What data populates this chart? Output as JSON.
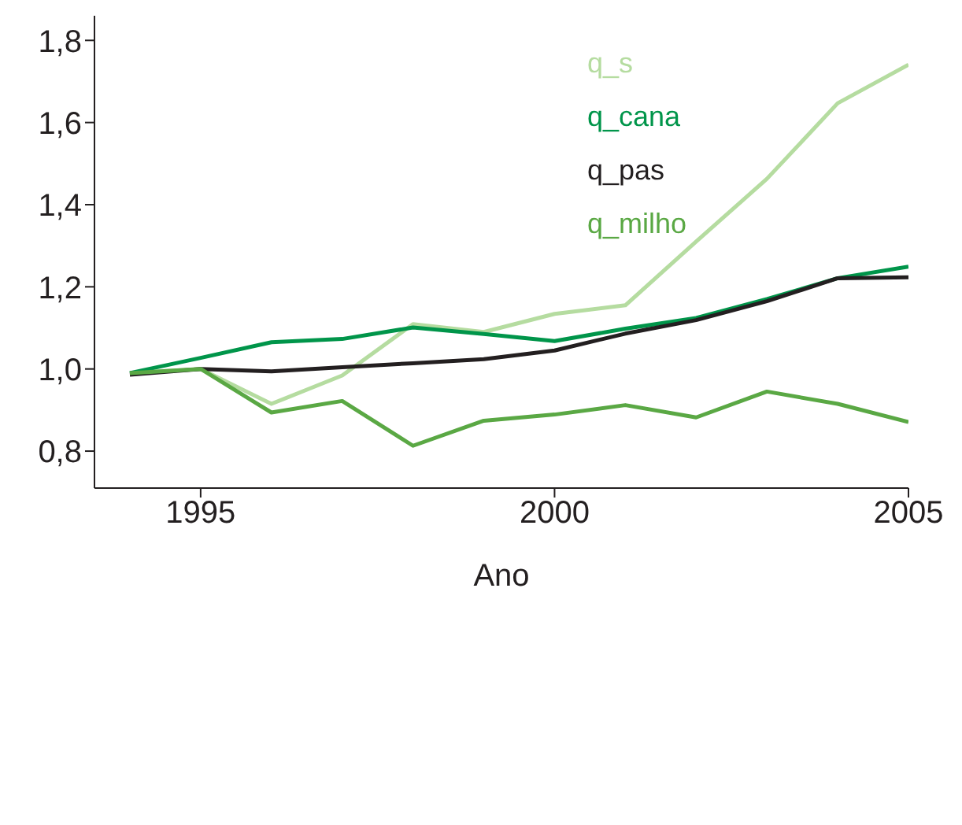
{
  "chart_data": {
    "type": "line",
    "xlabel": "Ano",
    "x": [
      1994,
      1995,
      1996,
      1997,
      1998,
      1999,
      2000,
      2001,
      2002,
      2003,
      2004,
      2005
    ],
    "xlim": [
      1993.5,
      2005
    ],
    "xticks": [
      1995,
      2000,
      2005
    ],
    "ylim": [
      0.71,
      1.86
    ],
    "yticks": [
      {
        "value": 0.8,
        "label": "0,8"
      },
      {
        "value": 1.0,
        "label": "1,0"
      },
      {
        "value": 1.2,
        "label": "1,2"
      },
      {
        "value": 1.4,
        "label": "1,4"
      },
      {
        "value": 1.6,
        "label": "1,6"
      },
      {
        "value": 1.8,
        "label": "1,8"
      }
    ],
    "grid": false,
    "legend": "top right",
    "marker": "none",
    "line_style": "solid",
    "series": [
      {
        "name": "q_s",
        "color": "#b5dca0",
        "values": [
          0.99,
          1.0,
          0.915,
          0.984,
          1.109,
          1.09,
          1.134,
          1.155,
          1.31,
          1.463,
          1.647,
          1.741
        ]
      },
      {
        "name": "q_cana",
        "color": "#00954a",
        "values": [
          0.99,
          1.027,
          1.065,
          1.073,
          1.101,
          1.085,
          1.068,
          1.098,
          1.124,
          1.17,
          1.221,
          1.249
        ]
      },
      {
        "name": "q_pas",
        "color": "#231f20",
        "values": [
          0.986,
          1.0,
          0.994,
          1.004,
          1.014,
          1.024,
          1.045,
          1.086,
          1.119,
          1.165,
          1.221,
          1.223
        ]
      },
      {
        "name": "q_milho",
        "color": "#5aa844",
        "values": [
          0.99,
          1.0,
          0.894,
          0.922,
          0.813,
          0.874,
          0.889,
          0.912,
          0.882,
          0.945,
          0.915,
          0.871
        ]
      }
    ]
  }
}
